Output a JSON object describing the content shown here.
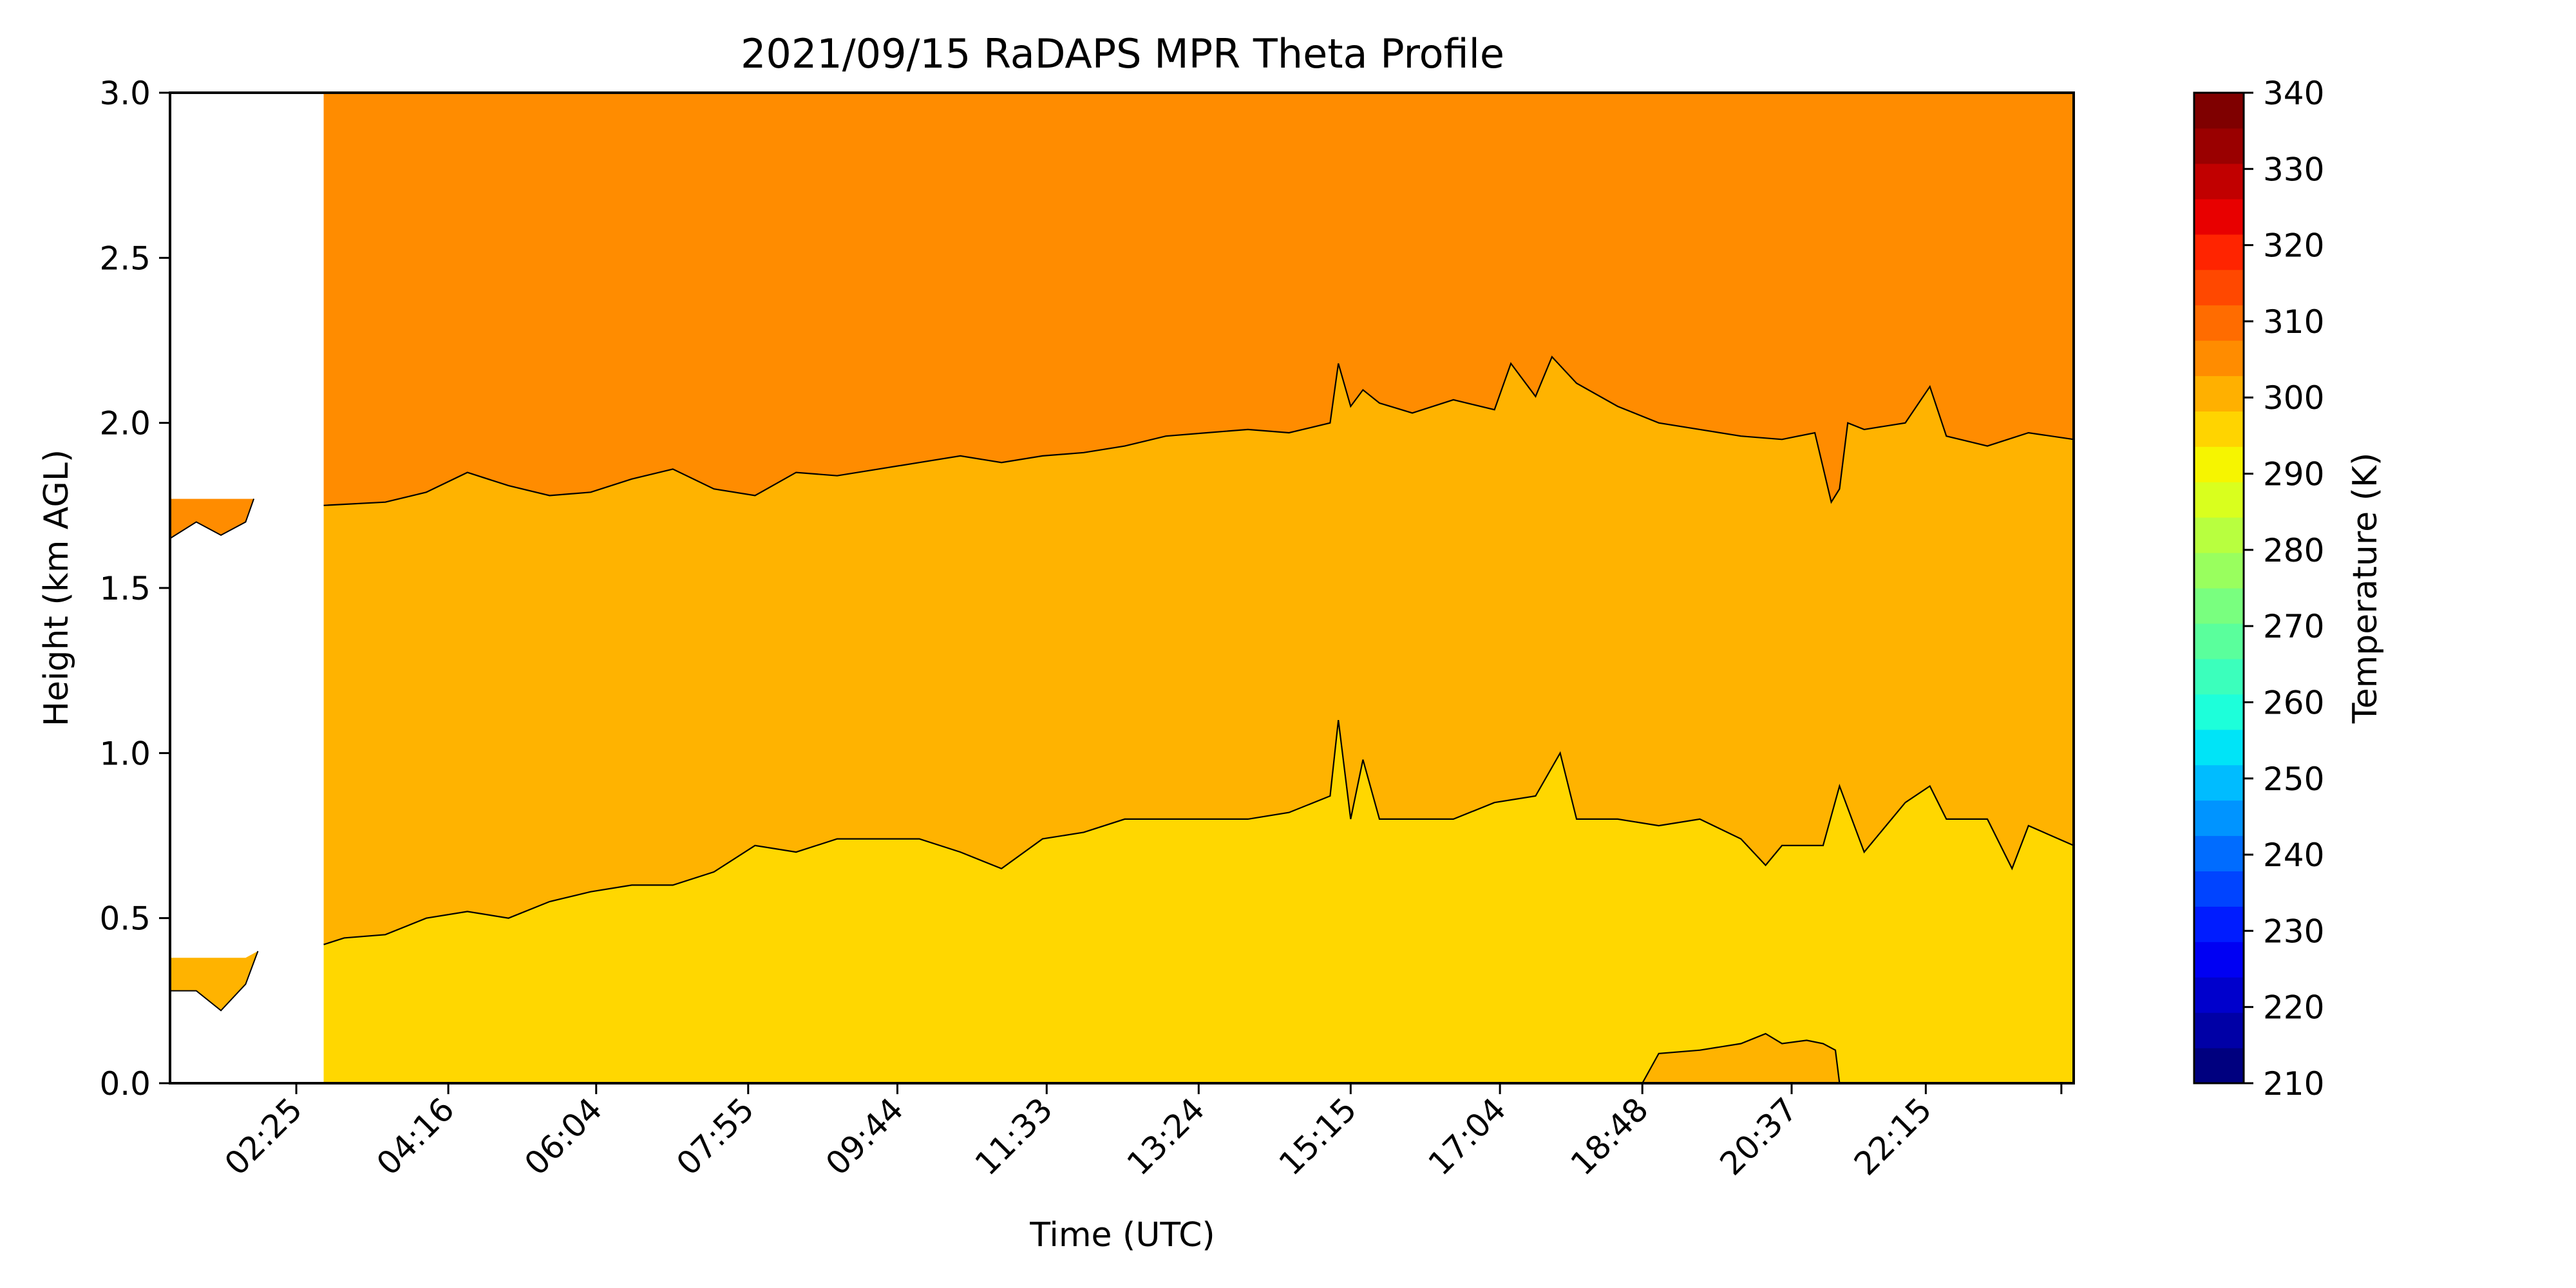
{
  "chart_data": {
    "type": "heatmap",
    "title": "2021/09/15 RaDAPS MPR Theta Profile",
    "xlabel": "Time (UTC)",
    "ylabel": "Height (km AGL)",
    "colorbar_label": "Temperature (K)",
    "xlim_hours": [
      0.88,
      24.05
    ],
    "ylim": [
      0,
      3.0
    ],
    "x_ticks": [
      {
        "label": "02:25",
        "hours": 2.417
      },
      {
        "label": "04:16",
        "hours": 4.267
      },
      {
        "label": "06:04",
        "hours": 6.067
      },
      {
        "label": "07:55",
        "hours": 7.917
      },
      {
        "label": "09:44",
        "hours": 9.733
      },
      {
        "label": "11:33",
        "hours": 11.55
      },
      {
        "label": "13:24",
        "hours": 13.4
      },
      {
        "label": "15:15",
        "hours": 15.25
      },
      {
        "label": "17:04",
        "hours": 17.067
      },
      {
        "label": "18:48",
        "hours": 18.8
      },
      {
        "label": "20:37",
        "hours": 20.617
      },
      {
        "label": "22:15",
        "hours": 22.25
      },
      {
        "label": "",
        "hours": 23.9
      }
    ],
    "y_ticks": [
      "0.0",
      "0.5",
      "1.0",
      "1.5",
      "2.0",
      "2.5",
      "3.0"
    ],
    "colorbar_ticks": [
      "210",
      "220",
      "230",
      "240",
      "250",
      "260",
      "270",
      "280",
      "290",
      "300",
      "310",
      "320",
      "330",
      "340"
    ],
    "colorbar_range": [
      210,
      340
    ],
    "contour_step_k": 5,
    "colormap": [
      "#00007f",
      "#0000a6",
      "#0000cc",
      "#0000f3",
      "#001cff",
      "#0044ff",
      "#006cff",
      "#0094ff",
      "#00bcff",
      "#00e4f7",
      "#1dffda",
      "#3bffbc",
      "#5aff9c",
      "#79ff7f",
      "#99ff5e",
      "#b8ff3f",
      "#d9ff1e",
      "#f6f500",
      "#ffd400",
      "#ffb000",
      "#ff8c00",
      "#ff6c00",
      "#ff4800",
      "#ff2400",
      "#e80000",
      "#c10000",
      "#9a0000",
      "#7f0000"
    ],
    "bands": [
      {
        "range_k": [
          295,
          300
        ],
        "color": "#ffd700"
      },
      {
        "range_k": [
          300,
          305
        ],
        "color": "#ffb300"
      },
      {
        "range_k": [
          305,
          310
        ],
        "color": "#ff8c00"
      },
      {
        "range_k": [
          310,
          315
        ],
        "color": "#ff6a1a"
      }
    ],
    "data_gap_hours": [
      0.88,
      2.75
    ],
    "contour_305K": {
      "hours": [
        2.75,
        3.5,
        4.0,
        4.5,
        5.0,
        5.5,
        6.0,
        6.5,
        7.0,
        7.5,
        8.0,
        8.5,
        9.0,
        9.5,
        10.0,
        10.5,
        11.0,
        11.5,
        12.0,
        12.5,
        13.0,
        13.5,
        14.0,
        14.5,
        15.0,
        15.1,
        15.25,
        15.4,
        15.6,
        16.0,
        16.5,
        17.0,
        17.2,
        17.5,
        17.7,
        18.0,
        18.5,
        19.0,
        19.5,
        20.0,
        20.5,
        20.9,
        21.1,
        21.2,
        21.3,
        21.5,
        22.0,
        22.3,
        22.5,
        23.0,
        23.5,
        24.05
      ],
      "height": [
        1.75,
        1.76,
        1.79,
        1.85,
        1.81,
        1.78,
        1.79,
        1.83,
        1.86,
        1.8,
        1.78,
        1.85,
        1.84,
        1.86,
        1.88,
        1.9,
        1.88,
        1.9,
        1.91,
        1.93,
        1.96,
        1.97,
        1.98,
        1.97,
        2.0,
        2.18,
        2.05,
        2.1,
        2.06,
        2.03,
        2.07,
        2.04,
        2.18,
        2.08,
        2.2,
        2.12,
        2.05,
        2.0,
        1.98,
        1.96,
        1.95,
        1.97,
        1.76,
        1.8,
        2.0,
        1.98,
        2.0,
        2.11,
        1.96,
        1.93,
        1.97,
        1.95
      ]
    },
    "contour_300K": {
      "hours": [
        2.75,
        3.0,
        3.5,
        4.0,
        4.5,
        5.0,
        5.5,
        6.0,
        6.5,
        7.0,
        7.5,
        8.0,
        8.5,
        9.0,
        9.5,
        10.0,
        10.5,
        11.0,
        11.5,
        12.0,
        12.5,
        13.0,
        13.5,
        14.0,
        14.5,
        15.0,
        15.1,
        15.25,
        15.4,
        15.6,
        16.0,
        16.5,
        17.0,
        17.5,
        17.8,
        18.0,
        18.5,
        19.0,
        19.5,
        20.0,
        20.3,
        20.5,
        21.0,
        21.2,
        21.5,
        22.0,
        22.3,
        22.5,
        23.0,
        23.3,
        23.5,
        24.05
      ],
      "height": [
        0.42,
        0.44,
        0.45,
        0.5,
        0.52,
        0.5,
        0.55,
        0.58,
        0.6,
        0.6,
        0.64,
        0.72,
        0.7,
        0.74,
        0.74,
        0.74,
        0.7,
        0.65,
        0.74,
        0.76,
        0.8,
        0.8,
        0.8,
        0.8,
        0.82,
        0.87,
        1.1,
        0.8,
        0.98,
        0.8,
        0.8,
        0.8,
        0.85,
        0.87,
        1.0,
        0.8,
        0.8,
        0.78,
        0.8,
        0.74,
        0.66,
        0.72,
        0.72,
        0.9,
        0.7,
        0.85,
        0.9,
        0.8,
        0.8,
        0.65,
        0.78,
        0.72
      ]
    },
    "region_300K_surface": {
      "hours": [
        18.8,
        19.0,
        19.5,
        20.0,
        20.3,
        20.5,
        20.8,
        21.0,
        21.15,
        21.2
      ],
      "height": [
        0.0,
        0.09,
        0.1,
        0.12,
        0.15,
        0.12,
        0.13,
        0.12,
        0.1,
        0.0
      ]
    },
    "pre_gap_left_patches": [
      {
        "band_k": [
          305,
          310
        ],
        "hours": [
          0.88,
          1.2,
          1.5,
          1.8,
          1.9
        ],
        "top_km": [
          1.77,
          1.77,
          1.77,
          1.77,
          1.77
        ],
        "bottom_km": [
          1.65,
          1.7,
          1.66,
          1.7,
          1.77
        ]
      },
      {
        "band_k": [
          300,
          305
        ],
        "hours": [
          0.88,
          1.2,
          1.5,
          1.8,
          1.95
        ],
        "top_km": [
          0.38,
          0.38,
          0.38,
          0.38,
          0.4
        ],
        "bottom_km": [
          0.28,
          0.28,
          0.22,
          0.3,
          0.4
        ]
      }
    ],
    "annotations": []
  }
}
